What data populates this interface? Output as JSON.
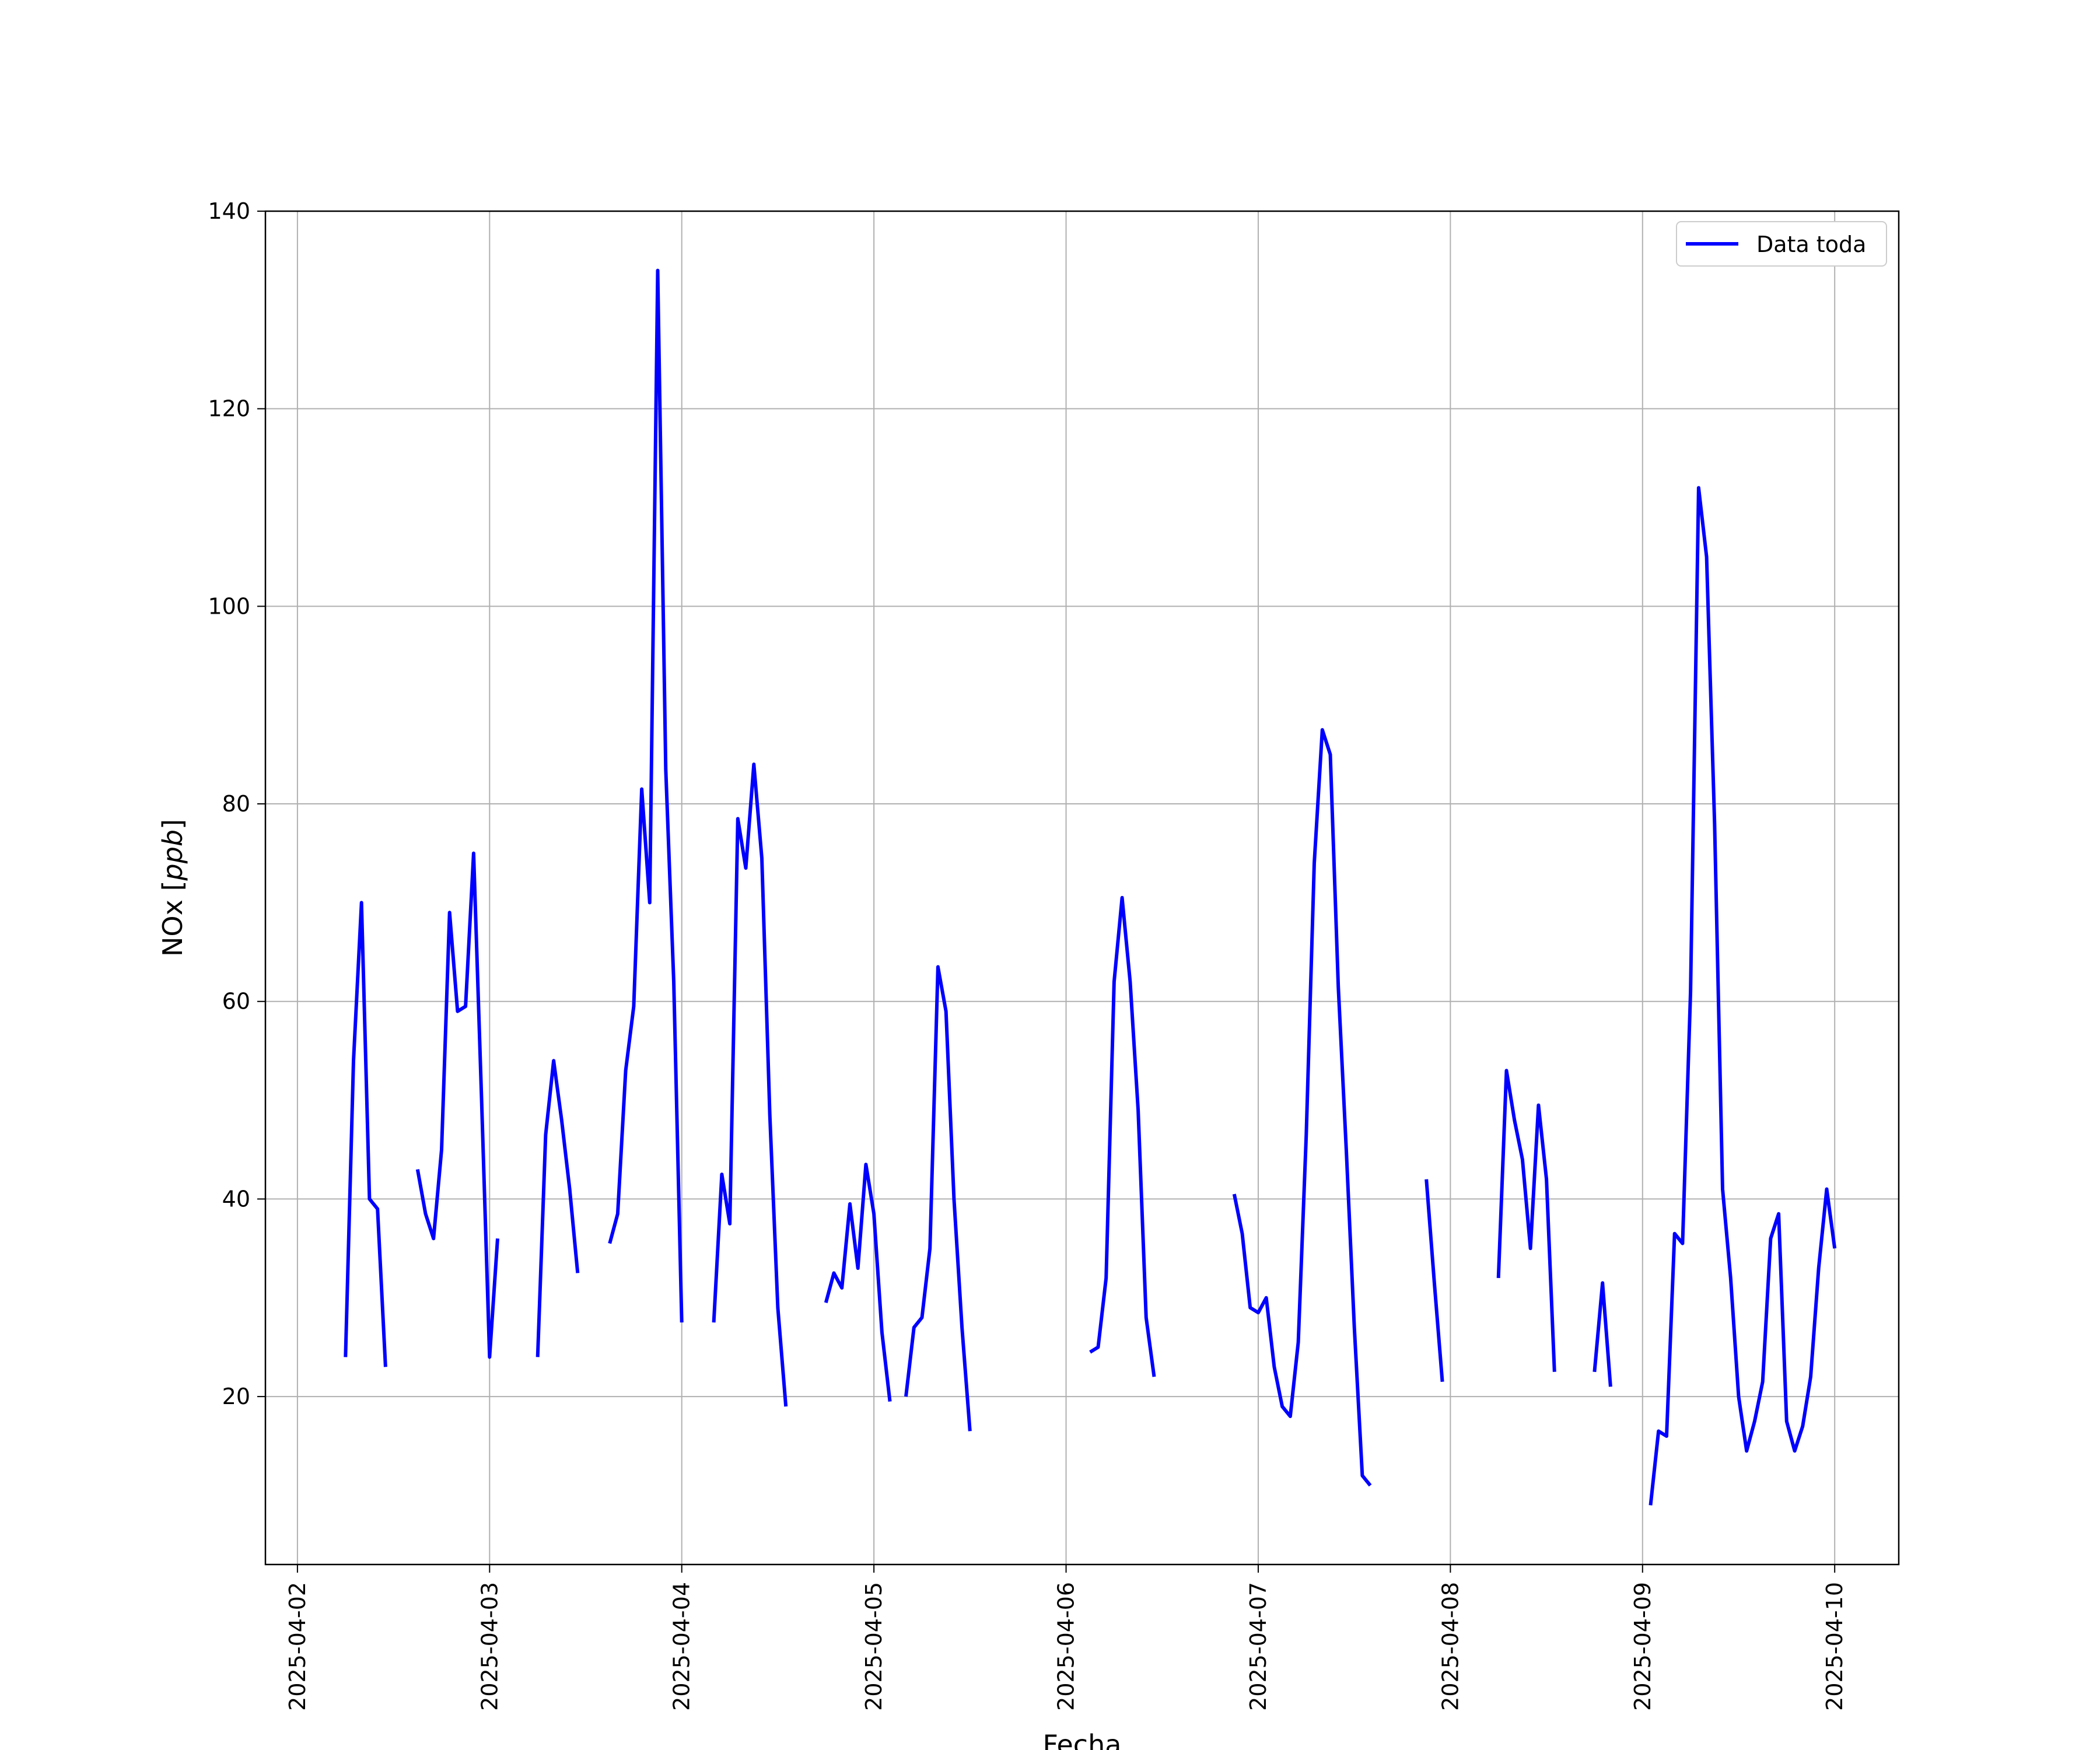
{
  "chart_data": {
    "type": "line",
    "xlabel": "Fecha",
    "ylabel": "NOx [ppb]",
    "ylabel_text": "NOx ",
    "ylabel_unit": "ppb",
    "x_range": [
      "2025-04-01T20:00",
      "2025-04-10T08:00"
    ],
    "ylim": [
      3,
      140
    ],
    "yticks": [
      20,
      40,
      60,
      80,
      100,
      120,
      140
    ],
    "xticks": [
      "2025-04-02",
      "2025-04-03",
      "2025-04-04",
      "2025-04-05",
      "2025-04-06",
      "2025-04-07",
      "2025-04-08",
      "2025-04-09",
      "2025-04-10"
    ],
    "grid": true,
    "legend_position": "top-right",
    "series": [
      {
        "name": "Data toda",
        "color": "#0000ff",
        "segments": [
          [
            [
              "2025-04-02T06:00",
              24
            ],
            [
              "2025-04-02T07:00",
              54
            ],
            [
              "2025-04-02T08:00",
              70
            ],
            [
              "2025-04-02T09:00",
              40
            ],
            [
              "2025-04-02T10:00",
              39
            ],
            [
              "2025-04-02T11:00",
              23
            ]
          ],
          [
            [
              "2025-04-02T15:00",
              43
            ],
            [
              "2025-04-02T16:00",
              38.5
            ],
            [
              "2025-04-02T17:00",
              36
            ],
            [
              "2025-04-02T18:00",
              45
            ],
            [
              "2025-04-02T19:00",
              69
            ],
            [
              "2025-04-02T20:00",
              59
            ],
            [
              "2025-04-02T21:00",
              59.5
            ],
            [
              "2025-04-02T22:00",
              75
            ],
            [
              "2025-04-02T23:00",
              50
            ],
            [
              "2025-04-03T00:00",
              24
            ],
            [
              "2025-04-03T01:00",
              36
            ]
          ],
          [
            [
              "2025-04-03T06:00",
              24
            ],
            [
              "2025-04-03T07:00",
              46.5
            ],
            [
              "2025-04-03T08:00",
              54
            ],
            [
              "2025-04-03T09:00",
              48
            ],
            [
              "2025-04-03T10:00",
              41
            ],
            [
              "2025-04-03T11:00",
              32.5
            ]
          ],
          [
            [
              "2025-04-03T15:00",
              35.5
            ],
            [
              "2025-04-03T16:00",
              38.5
            ],
            [
              "2025-04-03T17:00",
              53
            ],
            [
              "2025-04-03T18:00",
              59.5
            ],
            [
              "2025-04-03T19:00",
              81.5
            ],
            [
              "2025-04-03T20:00",
              70
            ],
            [
              "2025-04-03T21:00",
              134
            ],
            [
              "2025-04-03T22:00",
              83.5
            ],
            [
              "2025-04-03T23:00",
              62
            ],
            [
              "2025-04-04T00:00",
              27.5
            ]
          ],
          [
            [
              "2025-04-04T04:00",
              27.5
            ],
            [
              "2025-04-04T05:00",
              42.5
            ],
            [
              "2025-04-04T06:00",
              37.5
            ],
            [
              "2025-04-04T07:00",
              78.5
            ],
            [
              "2025-04-04T08:00",
              73.5
            ],
            [
              "2025-04-04T09:00",
              84
            ],
            [
              "2025-04-04T10:00",
              74.5
            ],
            [
              "2025-04-04T11:00",
              48.5
            ],
            [
              "2025-04-04T12:00",
              29
            ],
            [
              "2025-04-04T13:00",
              19
            ]
          ],
          [
            [
              "2025-04-04T18:00",
              29.5
            ],
            [
              "2025-04-04T19:00",
              32.5
            ],
            [
              "2025-04-04T20:00",
              31
            ],
            [
              "2025-04-04T21:00",
              39.5
            ],
            [
              "2025-04-04T22:00",
              33
            ],
            [
              "2025-04-04T23:00",
              43.5
            ],
            [
              "2025-04-05T00:00",
              38.5
            ],
            [
              "2025-04-05T01:00",
              26.5
            ],
            [
              "2025-04-05T02:00",
              19.5
            ]
          ],
          [
            [
              "2025-04-05T04:00",
              20
            ],
            [
              "2025-04-05T05:00",
              27
            ],
            [
              "2025-04-05T06:00",
              28
            ],
            [
              "2025-04-05T07:00",
              35
            ],
            [
              "2025-04-05T08:00",
              63.5
            ],
            [
              "2025-04-05T09:00",
              59
            ],
            [
              "2025-04-05T10:00",
              40
            ],
            [
              "2025-04-05T11:00",
              27
            ],
            [
              "2025-04-05T12:00",
              16.5
            ]
          ],
          [
            [
              "2025-04-06T03:00",
              24.5
            ],
            [
              "2025-04-06T04:00",
              25
            ],
            [
              "2025-04-06T05:00",
              32
            ],
            [
              "2025-04-06T06:00",
              62
            ],
            [
              "2025-04-06T07:00",
              70.5
            ],
            [
              "2025-04-06T08:00",
              62
            ],
            [
              "2025-04-06T09:00",
              49
            ],
            [
              "2025-04-06T10:00",
              28
            ],
            [
              "2025-04-06T11:00",
              22
            ]
          ],
          [
            [
              "2025-04-06T21:00",
              40.5
            ],
            [
              "2025-04-06T22:00",
              36.5
            ],
            [
              "2025-04-06T23:00",
              29
            ],
            [
              "2025-04-07T00:00",
              28.5
            ],
            [
              "2025-04-07T01:00",
              30
            ],
            [
              "2025-04-07T02:00",
              23
            ],
            [
              "2025-04-07T03:00",
              19
            ],
            [
              "2025-04-07T04:00",
              18
            ],
            [
              "2025-04-07T05:00",
              25.5
            ],
            [
              "2025-04-07T06:00",
              46.5
            ],
            [
              "2025-04-07T07:00",
              74
            ],
            [
              "2025-04-07T08:00",
              87.5
            ],
            [
              "2025-04-07T09:00",
              85
            ],
            [
              "2025-04-07T10:00",
              61.5
            ],
            [
              "2025-04-07T11:00",
              45
            ],
            [
              "2025-04-07T12:00",
              27
            ],
            [
              "2025-04-07T13:00",
              12
            ],
            [
              "2025-04-07T14:00",
              11
            ]
          ],
          [
            [
              "2025-04-07T21:00",
              42
            ],
            [
              "2025-04-07T22:00",
              31.5
            ],
            [
              "2025-04-07T23:00",
              21.5
            ]
          ],
          [
            [
              "2025-04-08T06:00",
              32
            ],
            [
              "2025-04-08T07:00",
              53
            ],
            [
              "2025-04-08T08:00",
              48
            ],
            [
              "2025-04-08T09:00",
              44
            ],
            [
              "2025-04-08T10:00",
              35
            ],
            [
              "2025-04-08T11:00",
              49.5
            ],
            [
              "2025-04-08T12:00",
              42
            ],
            [
              "2025-04-08T13:00",
              22.5
            ]
          ],
          [
            [
              "2025-04-08T18:00",
              22.5
            ],
            [
              "2025-04-08T19:00",
              31.5
            ],
            [
              "2025-04-08T20:00",
              21
            ]
          ],
          [
            [
              "2025-04-09T01:00",
              9
            ],
            [
              "2025-04-09T02:00",
              16.5
            ],
            [
              "2025-04-09T03:00",
              16
            ],
            [
              "2025-04-09T04:00",
              36.5
            ],
            [
              "2025-04-09T05:00",
              35.5
            ],
            [
              "2025-04-09T06:00",
              61
            ],
            [
              "2025-04-09T07:00",
              112
            ],
            [
              "2025-04-09T08:00",
              105
            ],
            [
              "2025-04-09T09:00",
              78
            ],
            [
              "2025-04-09T10:00",
              41
            ],
            [
              "2025-04-09T11:00",
              32
            ],
            [
              "2025-04-09T12:00",
              20
            ],
            [
              "2025-04-09T13:00",
              14.5
            ],
            [
              "2025-04-09T14:00",
              17.5
            ],
            [
              "2025-04-09T15:00",
              21.5
            ],
            [
              "2025-04-09T16:00",
              36
            ],
            [
              "2025-04-09T17:00",
              38.5
            ],
            [
              "2025-04-09T18:00",
              17.5
            ],
            [
              "2025-04-09T19:00",
              14.5
            ],
            [
              "2025-04-09T20:00",
              17
            ],
            [
              "2025-04-09T21:00",
              22
            ],
            [
              "2025-04-09T22:00",
              33
            ],
            [
              "2025-04-09T23:00",
              41
            ],
            [
              "2025-04-10T00:00",
              35
            ]
          ]
        ]
      }
    ]
  }
}
